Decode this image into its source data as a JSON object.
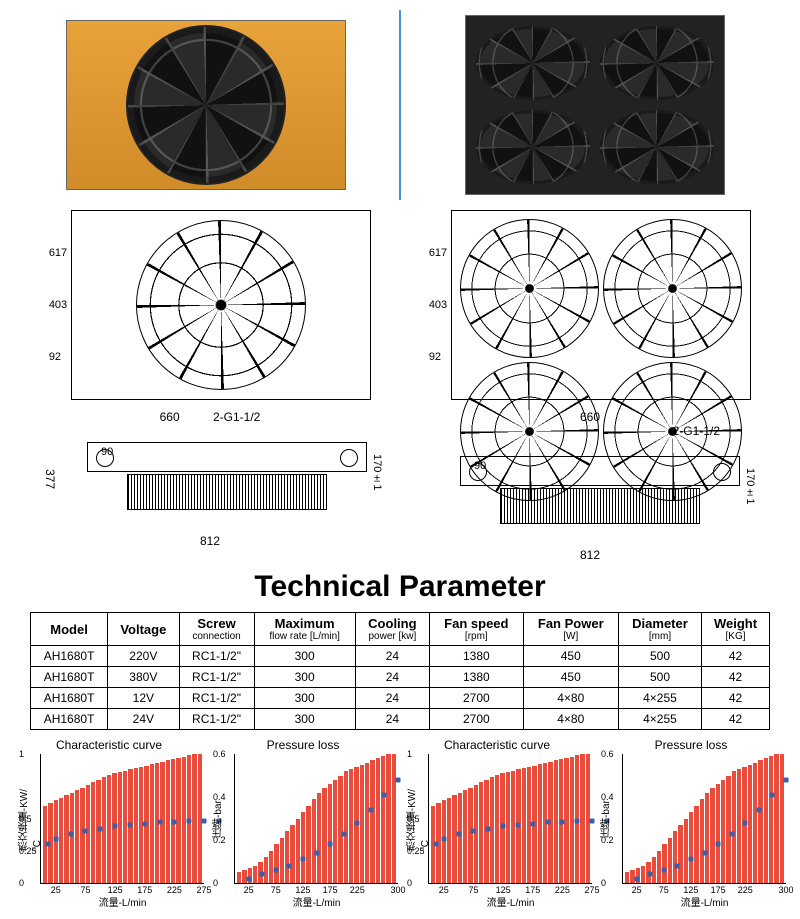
{
  "title": "Technical Parameter",
  "diagrams": {
    "left": {
      "front": {
        "h1": "617",
        "h2": "403",
        "h3": "92"
      },
      "side": {
        "w_top": "660",
        "port": "2-G1-1/2",
        "h_left": "377",
        "side_h": "90",
        "side_h2": "170±1",
        "w_bot": "812"
      }
    },
    "right": {
      "front": {
        "h1": "617",
        "h2": "403",
        "h3": "92"
      },
      "side": {
        "w_top": "660",
        "port": "2-G1-1/2",
        "side_h": "90",
        "side_h2": "170±1",
        "w_bot": "812"
      }
    }
  },
  "table": {
    "headers": [
      {
        "main": "Model",
        "sub": ""
      },
      {
        "main": "Voltage",
        "sub": ""
      },
      {
        "main": "Screw",
        "sub": "connection"
      },
      {
        "main": "Maximum",
        "sub": "flow rate [L/min]"
      },
      {
        "main": "Cooling",
        "sub": "power [kw]"
      },
      {
        "main": "Fan speed",
        "sub": "[rpm]"
      },
      {
        "main": "Fan Power",
        "sub": "[W]"
      },
      {
        "main": "Diameter",
        "sub": "[mm]"
      },
      {
        "main": "Weight",
        "sub": "[KG]"
      }
    ],
    "rows": [
      [
        "AH1680T",
        "220V",
        "RC1-1/2\"",
        "300",
        "24",
        "1380",
        "450",
        "500",
        "42"
      ],
      [
        "AH1680T",
        "380V",
        "RC1-1/2\"",
        "300",
        "24",
        "1380",
        "450",
        "500",
        "42"
      ],
      [
        "AH1680T",
        "12V",
        "RC1-1/2\"",
        "300",
        "24",
        "2700",
        "4×80",
        "4×255",
        "42"
      ],
      [
        "AH1680T",
        "24V",
        "RC1-1/2\"",
        "300",
        "24",
        "2700",
        "4×80",
        "4×255",
        "42"
      ]
    ]
  },
  "charts": [
    {
      "title": "Characteristic curve",
      "ylabel": "热交换量-KW/°C",
      "xlabel": "流量-L/min",
      "ymin": 0,
      "ymax": 1,
      "yticks": [
        0,
        0.25,
        0.5,
        1
      ],
      "xticks": [
        25,
        75,
        125,
        175,
        225,
        275
      ],
      "bars": [
        0.6,
        0.62,
        0.64,
        0.66,
        0.68,
        0.7,
        0.72,
        0.74,
        0.76,
        0.78,
        0.8,
        0.82,
        0.84,
        0.85,
        0.86,
        0.87,
        0.88,
        0.89,
        0.9,
        0.91,
        0.92,
        0.93,
        0.94,
        0.95,
        0.96,
        0.97,
        0.98,
        0.99,
        1.0,
        1.0
      ],
      "points": [
        [
          12,
          0.3
        ],
        [
          25,
          0.34
        ],
        [
          50,
          0.38
        ],
        [
          75,
          0.4
        ],
        [
          100,
          0.42
        ],
        [
          125,
          0.44
        ],
        [
          150,
          0.45
        ],
        [
          175,
          0.46
        ],
        [
          200,
          0.47
        ],
        [
          225,
          0.47
        ],
        [
          250,
          0.48
        ],
        [
          275,
          0.48
        ],
        [
          300,
          0.48
        ]
      ],
      "bar_color": "#e74c3c",
      "pt_color": "#3b5fa8"
    },
    {
      "title": "Pressure loss",
      "ylabel": "压降-bar",
      "xlabel": "流量-L/min",
      "ymin": 0,
      "ymax": 0.6,
      "yticks": [
        0,
        0.2,
        0.4,
        0.6
      ],
      "xticks": [
        25,
        75,
        125,
        175,
        225,
        300
      ],
      "bars": [
        0.05,
        0.06,
        0.07,
        0.08,
        0.1,
        0.12,
        0.15,
        0.18,
        0.21,
        0.24,
        0.27,
        0.3,
        0.33,
        0.36,
        0.39,
        0.42,
        0.44,
        0.46,
        0.48,
        0.5,
        0.52,
        0.53,
        0.54,
        0.55,
        0.56,
        0.57,
        0.58,
        0.59,
        0.6,
        0.6
      ],
      "points": [
        [
          25,
          0.02
        ],
        [
          50,
          0.04
        ],
        [
          75,
          0.06
        ],
        [
          100,
          0.08
        ],
        [
          125,
          0.11
        ],
        [
          150,
          0.14
        ],
        [
          175,
          0.18
        ],
        [
          200,
          0.23
        ],
        [
          225,
          0.28
        ],
        [
          250,
          0.34
        ],
        [
          275,
          0.41
        ],
        [
          300,
          0.48
        ]
      ],
      "bar_color": "#e74c3c",
      "pt_color": "#3b5fa8"
    },
    {
      "title": "Characteristic curve",
      "ylabel": "热交换量-KW/°C",
      "xlabel": "流量-L/min",
      "ymin": 0,
      "ymax": 1,
      "yticks": [
        0,
        0.25,
        0.5,
        1
      ],
      "xticks": [
        25,
        75,
        125,
        175,
        225,
        275
      ],
      "bars": [
        0.6,
        0.62,
        0.64,
        0.66,
        0.68,
        0.7,
        0.72,
        0.74,
        0.76,
        0.78,
        0.8,
        0.82,
        0.84,
        0.85,
        0.86,
        0.87,
        0.88,
        0.89,
        0.9,
        0.91,
        0.92,
        0.93,
        0.94,
        0.95,
        0.96,
        0.97,
        0.98,
        0.99,
        1.0,
        1.0
      ],
      "points": [
        [
          12,
          0.3
        ],
        [
          25,
          0.34
        ],
        [
          50,
          0.38
        ],
        [
          75,
          0.4
        ],
        [
          100,
          0.42
        ],
        [
          125,
          0.44
        ],
        [
          150,
          0.45
        ],
        [
          175,
          0.46
        ],
        [
          200,
          0.47
        ],
        [
          225,
          0.47
        ],
        [
          250,
          0.48
        ],
        [
          275,
          0.48
        ],
        [
          300,
          0.48
        ]
      ],
      "bar_color": "#e74c3c",
      "pt_color": "#3b5fa8"
    },
    {
      "title": "Pressure loss",
      "ylabel": "压降-bar",
      "xlabel": "流量-L/min",
      "ymin": 0,
      "ymax": 0.6,
      "yticks": [
        0,
        0.2,
        0.4,
        0.6
      ],
      "xticks": [
        25,
        75,
        125,
        175,
        225,
        300
      ],
      "bars": [
        0.05,
        0.06,
        0.07,
        0.08,
        0.1,
        0.12,
        0.15,
        0.18,
        0.21,
        0.24,
        0.27,
        0.3,
        0.33,
        0.36,
        0.39,
        0.42,
        0.44,
        0.46,
        0.48,
        0.5,
        0.52,
        0.53,
        0.54,
        0.55,
        0.56,
        0.57,
        0.58,
        0.59,
        0.6,
        0.6
      ],
      "points": [
        [
          25,
          0.02
        ],
        [
          50,
          0.04
        ],
        [
          75,
          0.06
        ],
        [
          100,
          0.08
        ],
        [
          125,
          0.11
        ],
        [
          150,
          0.14
        ],
        [
          175,
          0.18
        ],
        [
          200,
          0.23
        ],
        [
          225,
          0.28
        ],
        [
          250,
          0.34
        ],
        [
          275,
          0.41
        ],
        [
          300,
          0.48
        ]
      ],
      "bar_color": "#e74c3c",
      "pt_color": "#3b5fa8"
    }
  ]
}
